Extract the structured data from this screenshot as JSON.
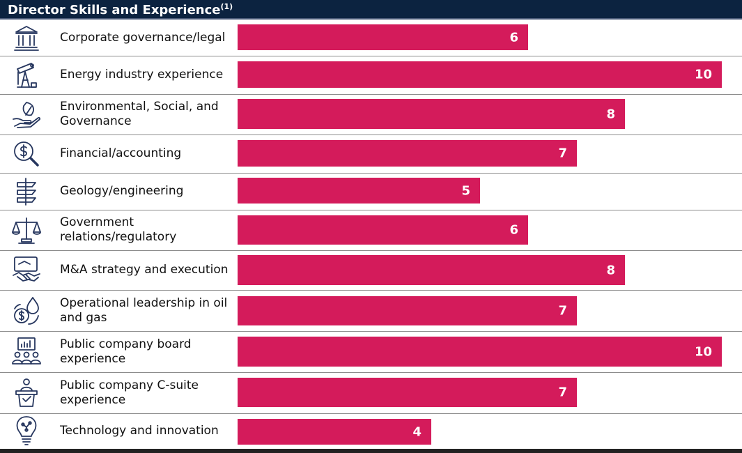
{
  "chart_data": {
    "type": "bar",
    "orientation": "horizontal",
    "title": "Director Skills and Experience",
    "title_footnote": "(1)",
    "categories": [
      "Corporate governance/legal",
      "Energy industry experience",
      "Environmental, Social, and Governance",
      "Financial/accounting",
      "Geology/engineering",
      "Government relations/regulatory",
      "M&A strategy and execution",
      "Operational leadership in oil and gas",
      "Public company board experience",
      "Public company C-suite experience",
      "Technology and innovation"
    ],
    "values": [
      6,
      10,
      8,
      7,
      5,
      6,
      8,
      7,
      10,
      7,
      4
    ],
    "icons": [
      "courthouse-icon",
      "oil-pump-icon",
      "leaf-hand-icon",
      "dollar-magnifier-icon",
      "geology-layers-icon",
      "scales-icon",
      "handshake-icon",
      "oil-drop-coin-icon",
      "board-meeting-icon",
      "podium-speaker-icon",
      "lightbulb-circuit-icon"
    ],
    "xlim": [
      0,
      10
    ],
    "bar_color": "#d41b5b",
    "header_color": "#0c2340",
    "value_labels": true,
    "grid": false
  }
}
